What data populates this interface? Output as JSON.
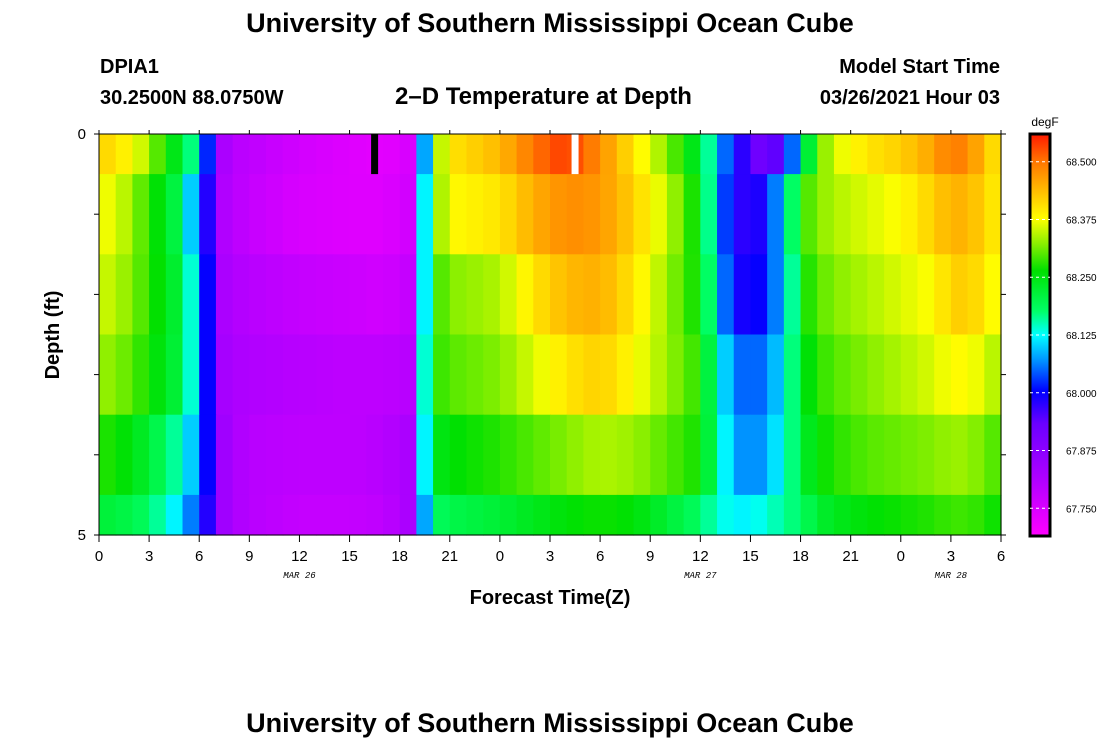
{
  "header": {
    "title": "University of Southern Mississippi Ocean Cube",
    "station": "DPIA1",
    "coords": "30.2500N 88.0750W",
    "plot_title": "2–D Temperature at Depth",
    "model_start_label": "Model Start Time",
    "model_start_value": "03/26/2021 Hour 03"
  },
  "footer": {
    "title": "University of Southern Mississippi Ocean Cube"
  },
  "chart_data": {
    "type": "heatmap",
    "title": "2–D Temperature at Depth",
    "xlabel": "Forecast Time(Z)",
    "ylabel": "Depth (ft)",
    "x_tick_labels": [
      "0",
      "3",
      "6",
      "9",
      "12",
      "15",
      "18",
      "21",
      "0",
      "3",
      "6",
      "9",
      "12",
      "15",
      "18",
      "21",
      "0",
      "3",
      "6"
    ],
    "x_hours": [
      0,
      3,
      6,
      9,
      12,
      15,
      18,
      21,
      24,
      27,
      30,
      33,
      36,
      39,
      42,
      45,
      48,
      51,
      54
    ],
    "xlim": [
      0,
      54
    ],
    "date_labels": [
      {
        "label": "MAR 26",
        "hour": 12
      },
      {
        "label": "MAR 27",
        "hour": 36
      },
      {
        "label": "MAR 28",
        "hour": 51
      }
    ],
    "y_tick_labels": [
      "0",
      "5"
    ],
    "ylim": [
      0,
      5
    ],
    "depth_rows": [
      0.5,
      1.5,
      2.5,
      3.5,
      4.5,
      5.0
    ],
    "colorbar": {
      "unit": "degF",
      "range": [
        67.69,
        68.56
      ],
      "ticks": [
        "68.500",
        "68.375",
        "68.250",
        "68.125",
        "68.000",
        "67.875",
        "67.750"
      ],
      "tick_values": [
        68.5,
        68.375,
        68.25,
        68.125,
        68.0,
        67.875,
        67.75
      ]
    },
    "markers": [
      {
        "hour": 16.5,
        "color": "#000000"
      },
      {
        "hour": 28.5,
        "color": "#ffffff"
      }
    ],
    "profile_hours": [
      0,
      1,
      2,
      3,
      4,
      5,
      5.5,
      6,
      6.5,
      7,
      7.5,
      8,
      9,
      12,
      15,
      17,
      18.5,
      19,
      19.5,
      20,
      21,
      24,
      26,
      28,
      30,
      32,
      34,
      36,
      37,
      38,
      39,
      40,
      41,
      42,
      42.5,
      43,
      44,
      46,
      48,
      50,
      51,
      52,
      53,
      54
    ],
    "temperature_profiles": [
      [
        68.42,
        68.4,
        68.38,
        68.33,
        68.27,
        68.22,
        68.17,
        68.1,
        68.02,
        67.9,
        67.82,
        67.8,
        67.79,
        67.76,
        67.74,
        67.73,
        67.75,
        67.92,
        68.08,
        68.3,
        68.4,
        68.44,
        68.5,
        68.54,
        68.48,
        68.4,
        68.32,
        68.22,
        68.1,
        68.0,
        67.95,
        67.9,
        67.98,
        68.12,
        68.22,
        68.3,
        68.36,
        68.4,
        68.42,
        68.46,
        68.5,
        68.48,
        68.44,
        68.38
      ],
      [
        68.38,
        68.36,
        68.33,
        68.28,
        68.24,
        68.18,
        68.1,
        68.05,
        67.98,
        67.88,
        67.81,
        67.8,
        67.78,
        67.75,
        67.74,
        67.74,
        67.76,
        67.95,
        68.12,
        68.3,
        68.38,
        68.4,
        68.45,
        68.48,
        68.47,
        68.42,
        68.35,
        68.25,
        68.08,
        67.98,
        67.97,
        68.0,
        68.12,
        68.24,
        68.3,
        68.32,
        68.34,
        68.36,
        68.38,
        68.42,
        68.45,
        68.44,
        68.42,
        68.38
      ],
      [
        68.36,
        68.34,
        68.32,
        68.28,
        68.25,
        68.2,
        68.14,
        68.08,
        68.0,
        67.88,
        67.82,
        67.81,
        67.8,
        67.78,
        67.77,
        67.76,
        67.78,
        67.96,
        68.12,
        68.28,
        68.32,
        68.34,
        68.4,
        68.44,
        68.45,
        68.4,
        68.33,
        68.26,
        68.1,
        68.0,
        67.98,
        68.02,
        68.1,
        68.22,
        68.28,
        68.3,
        68.32,
        68.34,
        68.36,
        68.38,
        68.42,
        68.42,
        68.4,
        68.36
      ],
      [
        68.33,
        68.32,
        68.3,
        68.27,
        68.24,
        68.2,
        68.14,
        68.07,
        68.0,
        67.89,
        67.83,
        67.82,
        67.81,
        67.8,
        67.79,
        67.79,
        67.8,
        67.98,
        68.14,
        68.28,
        68.3,
        68.32,
        68.36,
        68.4,
        68.42,
        68.38,
        68.33,
        68.28,
        68.14,
        68.06,
        68.04,
        68.06,
        68.12,
        68.22,
        68.26,
        68.28,
        68.3,
        68.32,
        68.34,
        68.36,
        68.38,
        68.38,
        68.36,
        68.33
      ],
      [
        68.28,
        68.27,
        68.25,
        68.22,
        68.18,
        68.14,
        68.1,
        68.05,
        68.0,
        67.9,
        67.84,
        67.82,
        67.8,
        67.79,
        67.79,
        67.8,
        67.82,
        68.0,
        68.12,
        68.24,
        68.26,
        68.28,
        68.3,
        68.32,
        68.34,
        68.33,
        68.3,
        68.27,
        68.16,
        68.08,
        68.06,
        68.08,
        68.14,
        68.2,
        68.24,
        68.26,
        68.28,
        68.3,
        68.31,
        68.32,
        68.33,
        68.33,
        68.31,
        68.29
      ],
      [
        68.22,
        68.21,
        68.2,
        68.18,
        68.14,
        68.1,
        68.06,
        68.02,
        67.98,
        67.9,
        67.84,
        67.82,
        67.8,
        67.78,
        67.78,
        67.79,
        67.82,
        67.98,
        68.08,
        68.18,
        68.2,
        68.22,
        68.24,
        68.26,
        68.27,
        68.26,
        68.22,
        68.18,
        68.14,
        68.12,
        68.12,
        68.14,
        68.16,
        68.18,
        68.2,
        68.22,
        68.24,
        68.26,
        68.27,
        68.28,
        68.29,
        68.29,
        68.28,
        68.26
      ]
    ]
  }
}
